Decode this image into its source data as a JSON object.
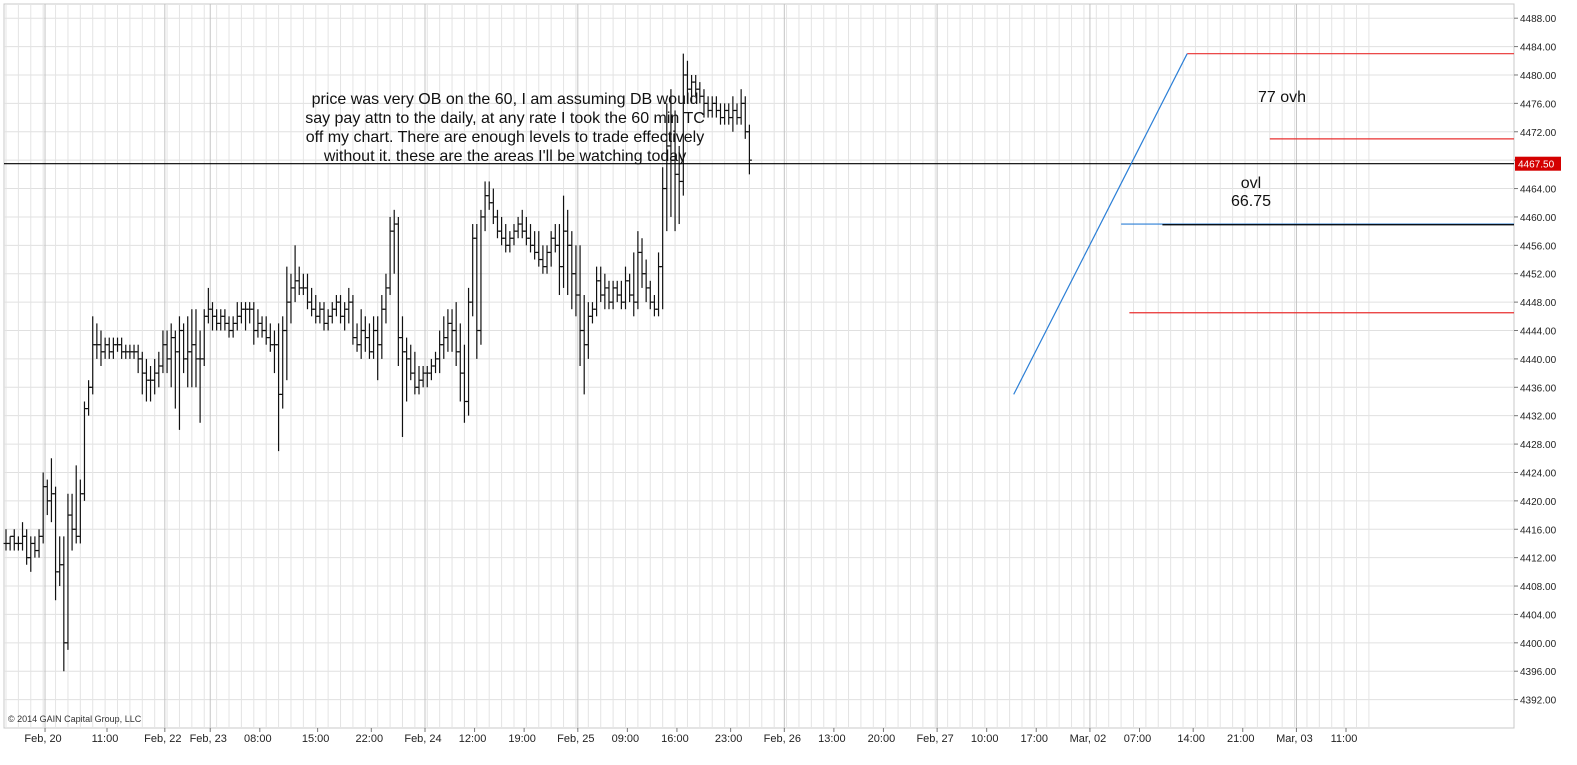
{
  "chart_data": {
    "type": "ohlc",
    "title": "",
    "ylim": [
      4388,
      4490
    ],
    "y_ticks": [
      "4392.00",
      "4396.00",
      "4400.00",
      "4404.00",
      "4408.00",
      "4412.00",
      "4416.00",
      "4420.00",
      "4424.00",
      "4428.00",
      "4432.00",
      "4436.00",
      "4440.00",
      "4444.00",
      "4448.00",
      "4452.00",
      "4456.00",
      "4460.00",
      "4464.00",
      "4468.00",
      "4472.00",
      "4476.00",
      "4480.00",
      "4484.00",
      "4488.00"
    ],
    "x_ticks": [
      "Feb, 20",
      "11:00",
      "Feb, 22",
      "Feb, 23",
      "08:00",
      "15:00",
      "22:00",
      "Feb, 24",
      "12:00",
      "19:00",
      "Feb, 25",
      "09:00",
      "16:00",
      "23:00",
      "Feb, 26",
      "13:00",
      "20:00",
      "Feb, 27",
      "10:00",
      "17:00",
      "Mar, 02",
      "07:00",
      "14:00",
      "21:00",
      "Mar, 03",
      "11:00"
    ],
    "x_tick_bar_index": [
      8,
      23,
      37,
      48,
      60,
      74,
      87,
      100,
      112,
      124,
      137,
      149,
      161,
      174,
      187,
      199,
      211,
      224,
      236,
      248,
      261,
      273,
      286,
      298,
      311,
      323
    ],
    "current_price": "4467.50",
    "grid": true,
    "levels": [
      {
        "name": "ovh",
        "value": 4483.0,
        "color": "#e83030",
        "from_bar": 286
      },
      {
        "name": "upper",
        "value": 4471.0,
        "color": "#e83030",
        "from_bar": 306
      },
      {
        "name": "current",
        "value": 4467.5,
        "color": "#000000",
        "from_bar": 0
      },
      {
        "name": "ovl-blue",
        "value": 4459.0,
        "color": "#2c7fd6",
        "from_bar": 270
      },
      {
        "name": "ovl-black",
        "value": 4458.9,
        "color": "#000000",
        "from_bar": 280
      },
      {
        "name": "lower",
        "value": 4446.5,
        "color": "#e83030",
        "from_bar": 272
      }
    ],
    "trendline": {
      "from": [
        244,
        4435.0
      ],
      "to": [
        286,
        4483.0
      ],
      "color": "#2c7fd6"
    },
    "bars": [
      [
        4414,
        4416,
        4413,
        4414
      ],
      [
        4414,
        4415,
        4413,
        4415
      ],
      [
        4415,
        4416,
        4413,
        4414
      ],
      [
        4414,
        4415,
        4413,
        4414
      ],
      [
        4414,
        4417,
        4413,
        4415
      ],
      [
        4415,
        4416,
        4411,
        4412
      ],
      [
        4412,
        4415,
        4410,
        4414
      ],
      [
        4414,
        4415,
        4412,
        4413
      ],
      [
        4413,
        4416,
        4412,
        4415
      ],
      [
        4415,
        4424,
        4414,
        4422
      ],
      [
        4422,
        4423,
        4418,
        4420
      ],
      [
        4420,
        4426,
        4417,
        4421
      ],
      [
        4421,
        4422,
        4406,
        4410
      ],
      [
        4410,
        4415,
        4408,
        4411
      ],
      [
        4411,
        4415,
        4396,
        4400
      ],
      [
        4400,
        4421,
        4399,
        4418
      ],
      [
        4418,
        4421,
        4413,
        4416
      ],
      [
        4416,
        4425,
        4414,
        4415
      ],
      [
        4415,
        4423,
        4414,
        4421
      ],
      [
        4421,
        4434,
        4420,
        4433
      ],
      [
        4433,
        4437,
        4432,
        4436
      ],
      [
        4436,
        4446,
        4435,
        4442
      ],
      [
        4442,
        4445,
        4440,
        4442
      ],
      [
        4442,
        4444,
        4439,
        4441
      ],
      [
        4441,
        4443,
        4440,
        4442
      ],
      [
        4442,
        4443,
        4440,
        4441
      ],
      [
        4441,
        4443,
        4440,
        4442
      ],
      [
        4442,
        4443,
        4441,
        4442
      ],
      [
        4442,
        4443,
        4440,
        4441
      ],
      [
        4441,
        4442,
        4440,
        4441
      ],
      [
        4441,
        4442,
        4440,
        4441
      ],
      [
        4441,
        4442,
        4440,
        4441
      ],
      [
        4441,
        4442,
        4438,
        4440
      ],
      [
        4440,
        4441,
        4435,
        4438
      ],
      [
        4438,
        4440,
        4434,
        4437
      ],
      [
        4437,
        4439,
        4434,
        4437
      ],
      [
        4437,
        4440,
        4435,
        4438
      ],
      [
        4438,
        4441,
        4436,
        4439
      ],
      [
        4439,
        4444,
        4438,
        4442
      ],
      [
        4442,
        4444,
        4438,
        4440
      ],
      [
        4440,
        4445,
        4436,
        4443
      ],
      [
        4443,
        4444,
        4433,
        4441
      ],
      [
        4441,
        4446,
        4430,
        4444
      ],
      [
        4444,
        4445,
        4438,
        4440
      ],
      [
        4440,
        4446,
        4436,
        4441
      ],
      [
        4441,
        4447,
        4436,
        4442
      ],
      [
        4442,
        4447,
        4436,
        4440
      ],
      [
        4440,
        4444,
        4431,
        4440
      ],
      [
        4440,
        4447,
        4439,
        4446
      ],
      [
        4446,
        4450,
        4445,
        4447
      ],
      [
        4447,
        4448,
        4444,
        4446
      ],
      [
        4446,
        4447,
        4444,
        4445
      ],
      [
        4445,
        4447,
        4444,
        4446
      ],
      [
        4446,
        4447,
        4444,
        4445
      ],
      [
        4445,
        4446,
        4443,
        4444
      ],
      [
        4444,
        4446,
        4443,
        4445
      ],
      [
        4445,
        4448,
        4444,
        4446
      ],
      [
        4446,
        4448,
        4445,
        4447
      ],
      [
        4447,
        4448,
        4444,
        4447
      ],
      [
        4447,
        4448,
        4445,
        4447
      ],
      [
        4447,
        4448,
        4442,
        4444
      ],
      [
        4444,
        4447,
        4443,
        4445
      ],
      [
        4445,
        4446,
        4443,
        4444
      ],
      [
        4444,
        4446,
        4442,
        4443
      ],
      [
        4443,
        4445,
        4441,
        4442
      ],
      [
        4442,
        4444,
        4438,
        4442
      ],
      [
        4442,
        4445,
        4427,
        4435
      ],
      [
        4435,
        4446,
        4433,
        4444
      ],
      [
        4444,
        4453,
        4437,
        4448
      ],
      [
        4448,
        4452,
        4445,
        4450
      ],
      [
        4450,
        4456,
        4448,
        4451
      ],
      [
        4451,
        4453,
        4449,
        4450
      ],
      [
        4450,
        4452,
        4449,
        4450
      ],
      [
        4450,
        4452,
        4447,
        4448
      ],
      [
        4448,
        4450,
        4446,
        4447
      ],
      [
        4447,
        4449,
        4445,
        4446
      ],
      [
        4446,
        4448,
        4445,
        4447
      ],
      [
        4447,
        4448,
        4444,
        4445
      ],
      [
        4445,
        4447,
        4444,
        4446
      ],
      [
        4446,
        4448,
        4445,
        4447
      ],
      [
        4447,
        4449,
        4446,
        4448
      ],
      [
        4448,
        4449,
        4445,
        4446
      ],
      [
        4446,
        4448,
        4444,
        4447
      ],
      [
        4447,
        4450,
        4445,
        4448
      ],
      [
        4448,
        4449,
        4442,
        4443
      ],
      [
        4443,
        4445,
        4441,
        4442
      ],
      [
        4442,
        4447,
        4440,
        4444
      ],
      [
        4444,
        4446,
        4441,
        4443
      ],
      [
        4443,
        4445,
        4440,
        4441
      ],
      [
        4441,
        4446,
        4440,
        4444
      ],
      [
        4444,
        4446,
        4437,
        4442
      ],
      [
        4442,
        4449,
        4440,
        4447
      ],
      [
        4447,
        4452,
        4445,
        4450
      ],
      [
        4450,
        4460,
        4449,
        4458
      ],
      [
        4458,
        4461,
        4452,
        4459
      ],
      [
        4459,
        4460,
        4439,
        4443
      ],
      [
        4443,
        4446,
        4429,
        4441
      ],
      [
        4441,
        4443,
        4434,
        4440
      ],
      [
        4440,
        4442,
        4437,
        4438
      ],
      [
        4438,
        4441,
        4435,
        4436
      ],
      [
        4436,
        4439,
        4435,
        4437
      ],
      [
        4437,
        4439,
        4436,
        4438
      ],
      [
        4438,
        4439,
        4436,
        4438
      ],
      [
        4438,
        4440,
        4437,
        4439
      ],
      [
        4439,
        4441,
        4438,
        4440
      ],
      [
        4440,
        4444,
        4438,
        4442
      ],
      [
        4442,
        4446,
        4440,
        4443
      ],
      [
        4443,
        4447,
        4441,
        4445
      ],
      [
        4445,
        4447,
        4441,
        4444
      ],
      [
        4444,
        4448,
        4439,
        4441
      ],
      [
        4441,
        4445,
        4434,
        4438
      ],
      [
        4438,
        4442,
        4431,
        4434
      ],
      [
        4434,
        4450,
        4432,
        4448
      ],
      [
        4448,
        4459,
        4446,
        4457
      ],
      [
        4457,
        4459,
        4440,
        4444
      ],
      [
        4444,
        4461,
        4442,
        4460
      ],
      [
        4460,
        4465,
        4458,
        4463
      ],
      [
        4463,
        4465,
        4461,
        4462
      ],
      [
        4462,
        4464,
        4459,
        4460
      ],
      [
        4460,
        4461,
        4457,
        4458
      ],
      [
        4458,
        4460,
        4456,
        4457
      ],
      [
        4457,
        4459,
        4455,
        4456
      ],
      [
        4456,
        4458,
        4455,
        4457
      ],
      [
        4457,
        4459,
        4456,
        4458
      ],
      [
        4458,
        4460,
        4457,
        4459
      ],
      [
        4459,
        4461,
        4457,
        4458
      ],
      [
        4458,
        4460,
        4456,
        4457
      ],
      [
        4457,
        4459,
        4455,
        4456
      ],
      [
        4456,
        4458,
        4454,
        4455
      ],
      [
        4455,
        4458,
        4453,
        4454
      ],
      [
        4454,
        4456,
        4452,
        4453
      ],
      [
        4453,
        4456,
        4452,
        4455
      ],
      [
        4455,
        4458,
        4453,
        4457
      ],
      [
        4457,
        4459,
        4455,
        4456
      ],
      [
        4456,
        4459,
        4449,
        4453
      ],
      [
        4453,
        4463,
        4450,
        4458
      ],
      [
        4458,
        4461,
        4449,
        4456
      ],
      [
        4456,
        4458,
        4447,
        4452
      ],
      [
        4452,
        4456,
        4446,
        4449
      ],
      [
        4449,
        4456,
        4439,
        4444
      ],
      [
        4444,
        4449,
        4435,
        4442
      ],
      [
        4442,
        4448,
        4440,
        4446
      ],
      [
        4446,
        4448,
        4445,
        4447
      ],
      [
        4447,
        4453,
        4446,
        4451
      ],
      [
        4451,
        4453,
        4448,
        4449
      ],
      [
        4449,
        4452,
        4447,
        4450
      ],
      [
        4450,
        4451,
        4447,
        4448
      ],
      [
        4448,
        4451,
        4447,
        4450
      ],
      [
        4450,
        4451,
        4448,
        4449
      ],
      [
        4449,
        4451,
        4447,
        4448
      ],
      [
        4448,
        4453,
        4447,
        4451
      ],
      [
        4451,
        4452,
        4448,
        4449
      ],
      [
        4449,
        4455,
        4446,
        4448
      ],
      [
        4448,
        4458,
        4447,
        4455
      ],
      [
        4455,
        4457,
        4450,
        4452
      ],
      [
        4452,
        4454,
        4448,
        4450
      ],
      [
        4450,
        4451,
        4447,
        4448
      ],
      [
        4448,
        4449,
        4446,
        4447
      ],
      [
        4447,
        4455,
        4446,
        4453
      ],
      [
        4453,
        4467,
        4447,
        4464
      ],
      [
        4464,
        4476,
        4458,
        4470
      ],
      [
        4470,
        4478,
        4460,
        4468
      ],
      [
        4468,
        4475,
        4458,
        4466
      ],
      [
        4466,
        4470,
        4459,
        4465
      ],
      [
        4465,
        4483,
        4463,
        4480
      ],
      [
        4480,
        4482,
        4476,
        4478
      ],
      [
        4478,
        4480,
        4476,
        4479
      ],
      [
        4479,
        4480,
        4477,
        4478
      ],
      [
        4478,
        4479,
        4476,
        4477
      ],
      [
        4477,
        4478,
        4474,
        4476
      ],
      [
        4476,
        4477,
        4474,
        4475
      ],
      [
        4475,
        4477,
        4474,
        4476
      ],
      [
        4476,
        4477,
        4474,
        4475
      ],
      [
        4475,
        4476,
        4473,
        4474
      ],
      [
        4474,
        4476,
        4473,
        4475
      ],
      [
        4475,
        4476,
        4473,
        4474
      ],
      [
        4474,
        4477,
        4472,
        4475
      ],
      [
        4475,
        4476,
        4473,
        4474
      ],
      [
        4474,
        4478,
        4473,
        4476
      ],
      [
        4476,
        4477,
        4471,
        4472
      ],
      [
        4472,
        4473,
        4466,
        4468
      ]
    ]
  },
  "notes": {
    "main": [
      "price was very OB on the 60, I am assuming DB would",
      "say pay attn to the daily, at any rate I took the 60 min TC",
      "off my chart. There are enough levels to trade effectively",
      "without it. these are the areas I'll be watching today"
    ],
    "ovh": "77 ovh",
    "ovl": [
      "ovl",
      "66.75"
    ]
  },
  "copyright": "© 2014 GAIN Capital Group, LLC"
}
